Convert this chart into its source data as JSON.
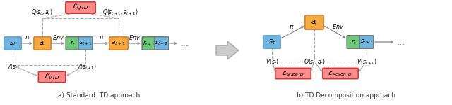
{
  "fig_width": 6.4,
  "fig_height": 1.5,
  "dpi": 100,
  "bg_color": "#ffffff",
  "blue": "#6fb5e0",
  "orange": "#f5a93f",
  "green": "#6dc878",
  "red_fill": "#f98b8b",
  "red_edge": "#d93030",
  "gray_arrow": "#888888",
  "gray_dash": "#aaaaaa",
  "caption_a": "a) Standard  TD approach",
  "caption_b": "b) TD Decomposition approach"
}
